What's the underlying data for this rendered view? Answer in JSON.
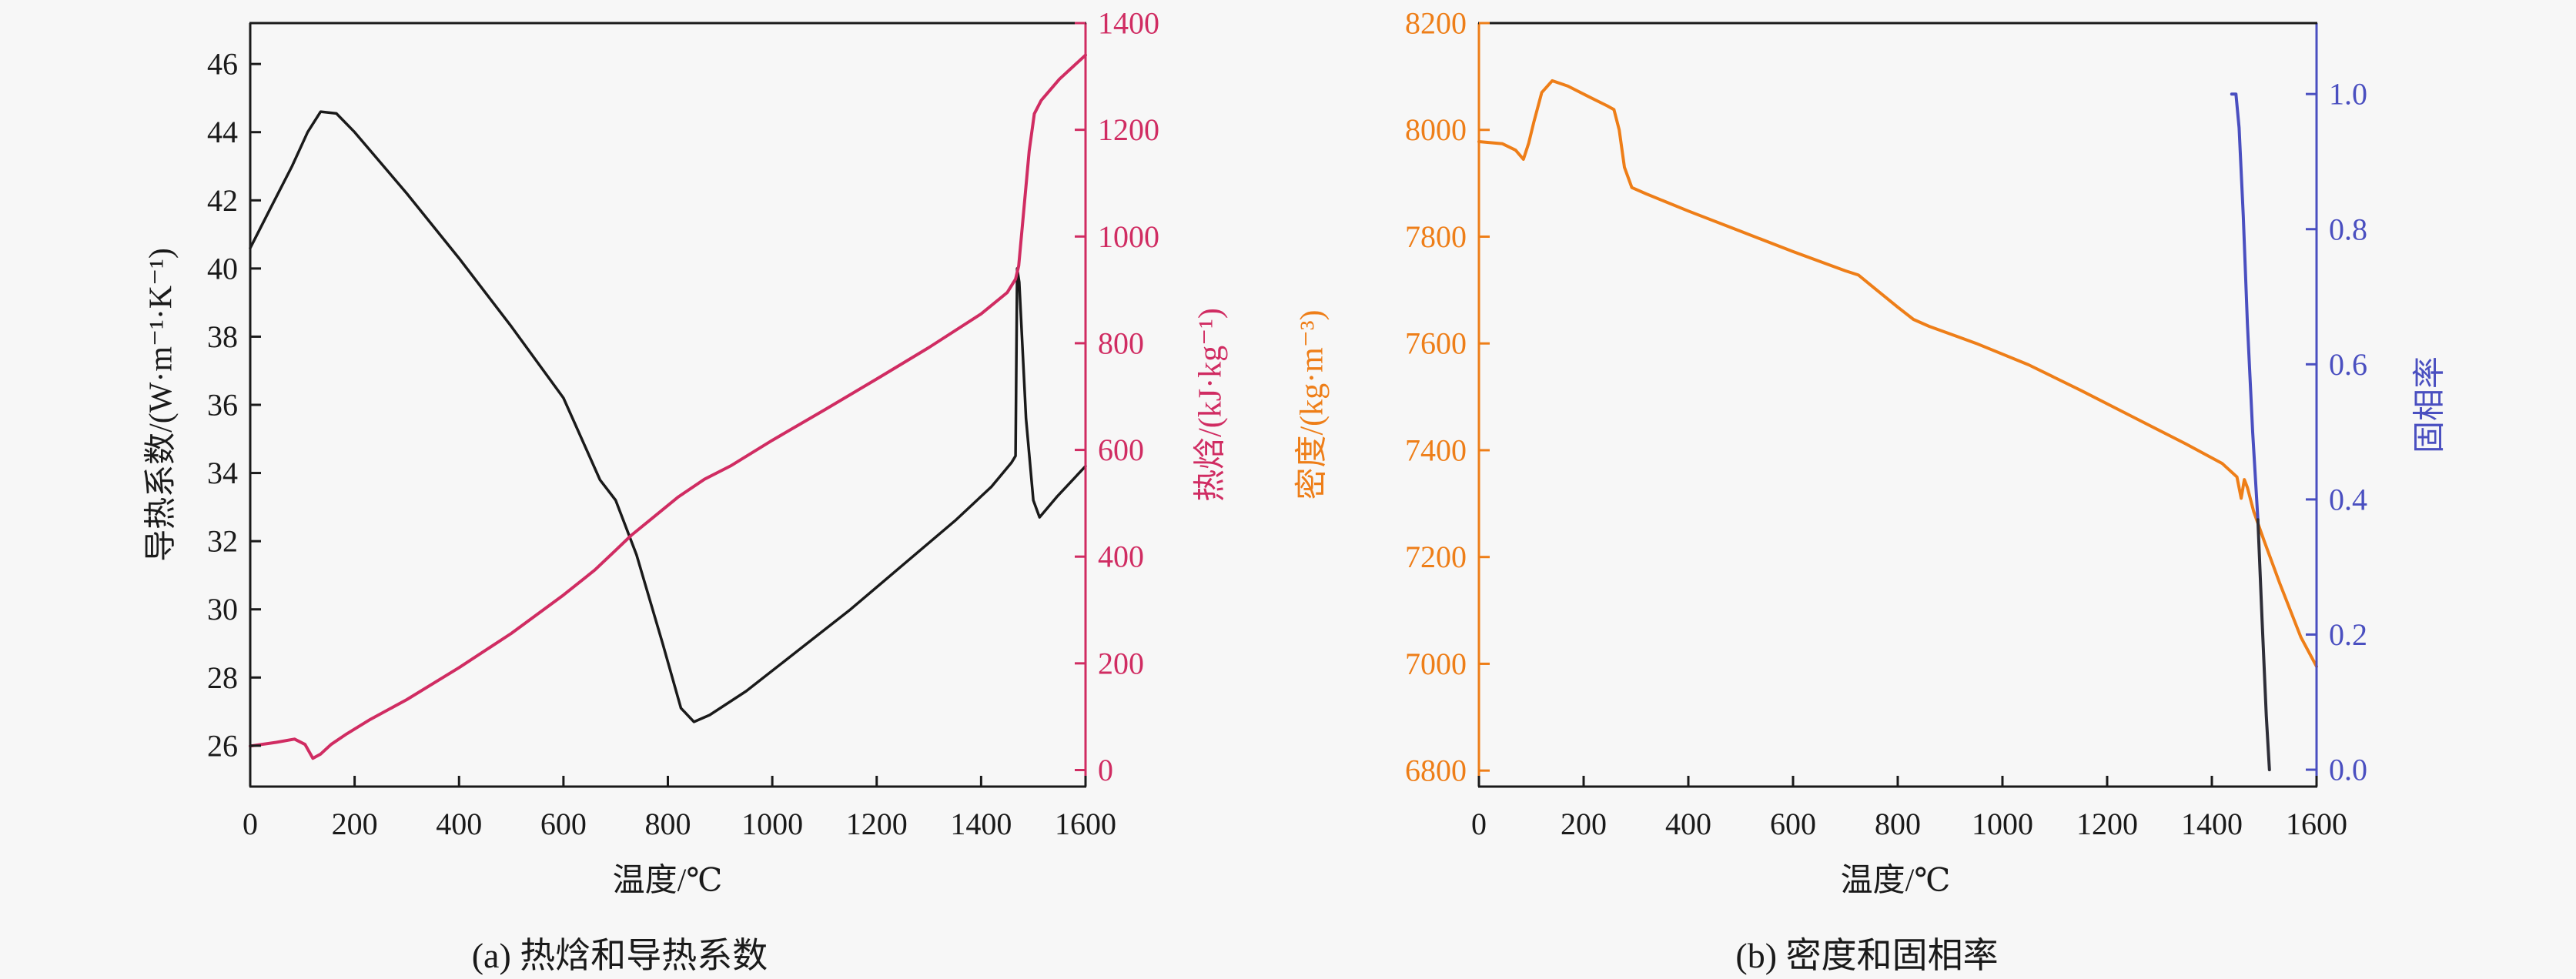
{
  "page": {
    "background": "#f7f7f7"
  },
  "chart_data": [
    {
      "type": "line",
      "caption": "(a) 热焓和导热系数",
      "xlabel": "温度/℃",
      "xlim": [
        0,
        1600
      ],
      "xticks": [
        0,
        200,
        400,
        600,
        800,
        1000,
        1200,
        1400,
        1600
      ],
      "xtick_labels": [
        "0",
        "200",
        "400",
        "600",
        "800",
        "1000",
        "1200",
        "1400",
        "1600"
      ],
      "grid": false,
      "legend": "none",
      "axes": {
        "bottom_color": "#1a1a1a",
        "top_color": "#1a1a1a",
        "left": {
          "label": "导热系数/(W·m⁻¹·K⁻¹)",
          "color": "#1a1a1a",
          "ylim": [
            24.8,
            47.2
          ],
          "ticks": [
            26,
            28,
            30,
            32,
            34,
            36,
            38,
            40,
            42,
            44,
            46
          ],
          "tick_labels": [
            "26",
            "28",
            "30",
            "32",
            "34",
            "36",
            "38",
            "40",
            "42",
            "44",
            "46"
          ]
        },
        "right": {
          "label": "热焓/(kJ·kg⁻¹)",
          "color": "#d02c62",
          "ylim": [
            -31,
            1400
          ],
          "ticks": [
            0,
            200,
            400,
            600,
            800,
            1000,
            1200,
            1400
          ],
          "tick_labels": [
            "0",
            "200",
            "400",
            "600",
            "800",
            "1000",
            "1200",
            "1400"
          ]
        }
      },
      "series": [
        {
          "name": "导热系数",
          "axis": "left",
          "color": "#1a1a1a",
          "width": 3.5,
          "x": [
            0,
            40,
            80,
            110,
            135,
            165,
            200,
            300,
            400,
            500,
            600,
            670,
            700,
            740,
            790,
            825,
            850,
            880,
            950,
            1050,
            1150,
            1250,
            1350,
            1420,
            1458,
            1466,
            1469,
            1473,
            1486,
            1500,
            1512,
            1545,
            1600
          ],
          "y": [
            40.6,
            41.8,
            43.0,
            44.0,
            44.6,
            44.55,
            44.0,
            42.2,
            40.3,
            38.3,
            36.2,
            33.8,
            33.2,
            31.6,
            29.0,
            27.1,
            26.7,
            26.9,
            27.6,
            28.8,
            30.0,
            31.3,
            32.6,
            33.6,
            34.3,
            34.5,
            40.0,
            39.6,
            35.6,
            33.2,
            32.7,
            33.3,
            34.2
          ]
        },
        {
          "name": "热焓",
          "axis": "right",
          "color": "#d02c62",
          "width": 4,
          "x": [
            0,
            50,
            85,
            105,
            120,
            135,
            155,
            185,
            230,
            300,
            400,
            500,
            600,
            660,
            700,
            730,
            770,
            820,
            870,
            920,
            1000,
            1100,
            1200,
            1300,
            1400,
            1450,
            1466,
            1472,
            1480,
            1492,
            1502,
            1515,
            1550,
            1600
          ],
          "y": [
            45,
            52,
            58,
            48,
            22,
            30,
            48,
            68,
            95,
            132,
            192,
            256,
            328,
            375,
            412,
            440,
            472,
            512,
            545,
            570,
            618,
            675,
            733,
            792,
            855,
            895,
            920,
            945,
            1030,
            1160,
            1230,
            1255,
            1295,
            1340
          ]
        }
      ]
    },
    {
      "type": "line",
      "caption": "(b) 密度和固相率",
      "xlabel": "温度/℃",
      "xlim": [
        0,
        1600
      ],
      "xticks": [
        0,
        200,
        400,
        600,
        800,
        1000,
        1200,
        1400,
        1600
      ],
      "xtick_labels": [
        "0",
        "200",
        "400",
        "600",
        "800",
        "1000",
        "1200",
        "1400",
        "1600"
      ],
      "grid": false,
      "legend": "none",
      "axes": {
        "bottom_color": "#1a1a1a",
        "top_color": "#1a1a1a",
        "left": {
          "label": "密度/(kg·m⁻³)",
          "color": "#ee7e18",
          "ylim": [
            6770,
            8200
          ],
          "ticks": [
            6800,
            7000,
            7200,
            7400,
            7600,
            7800,
            8000,
            8200
          ],
          "tick_labels": [
            "6800",
            "7000",
            "7200",
            "7400",
            "7600",
            "7800",
            "8000",
            "8200"
          ]
        },
        "right": {
          "label": "固相率",
          "color": "#4a4fc0",
          "ylim": [
            -0.025,
            1.105
          ],
          "ticks": [
            0,
            0.2,
            0.4,
            0.6,
            0.8,
            1.0
          ],
          "tick_labels": [
            "0.0",
            "0.2",
            "0.4",
            "0.6",
            "0.8",
            "1.0"
          ]
        }
      },
      "series": [
        {
          "name": "密度",
          "axis": "left",
          "color": "#ee7e18",
          "width": 4,
          "x": [
            0,
            45,
            70,
            85,
            95,
            105,
            120,
            140,
            170,
            210,
            245,
            258,
            268,
            278,
            292,
            320,
            400,
            500,
            600,
            700,
            725,
            760,
            800,
            830,
            860,
            950,
            1050,
            1150,
            1250,
            1350,
            1420,
            1448,
            1456,
            1462,
            1468,
            1480,
            1500,
            1530,
            1570,
            1600
          ],
          "y": [
            7978,
            7974,
            7962,
            7945,
            7975,
            8015,
            8070,
            8092,
            8082,
            8062,
            8045,
            8038,
            8000,
            7930,
            7892,
            7880,
            7848,
            7810,
            7772,
            7736,
            7728,
            7700,
            7668,
            7645,
            7632,
            7600,
            7560,
            7512,
            7462,
            7412,
            7375,
            7350,
            7310,
            7345,
            7330,
            7285,
            7230,
            7150,
            7050,
            6995
          ]
        },
        {
          "name": "固相率",
          "axis": "right",
          "color": "#4a4fc0",
          "width": 4,
          "x": [
            1438,
            1446,
            1452,
            1460,
            1468,
            1478,
            1488
          ],
          "y": [
            1.0,
            1.0,
            0.95,
            0.82,
            0.66,
            0.5,
            0.37
          ]
        },
        {
          "name": "固相率下段",
          "axis": "right",
          "color": "#2e2e38",
          "width": 4,
          "x": [
            1488,
            1496,
            1504,
            1510
          ],
          "y": [
            0.37,
            0.22,
            0.08,
            0.0
          ]
        }
      ]
    }
  ]
}
